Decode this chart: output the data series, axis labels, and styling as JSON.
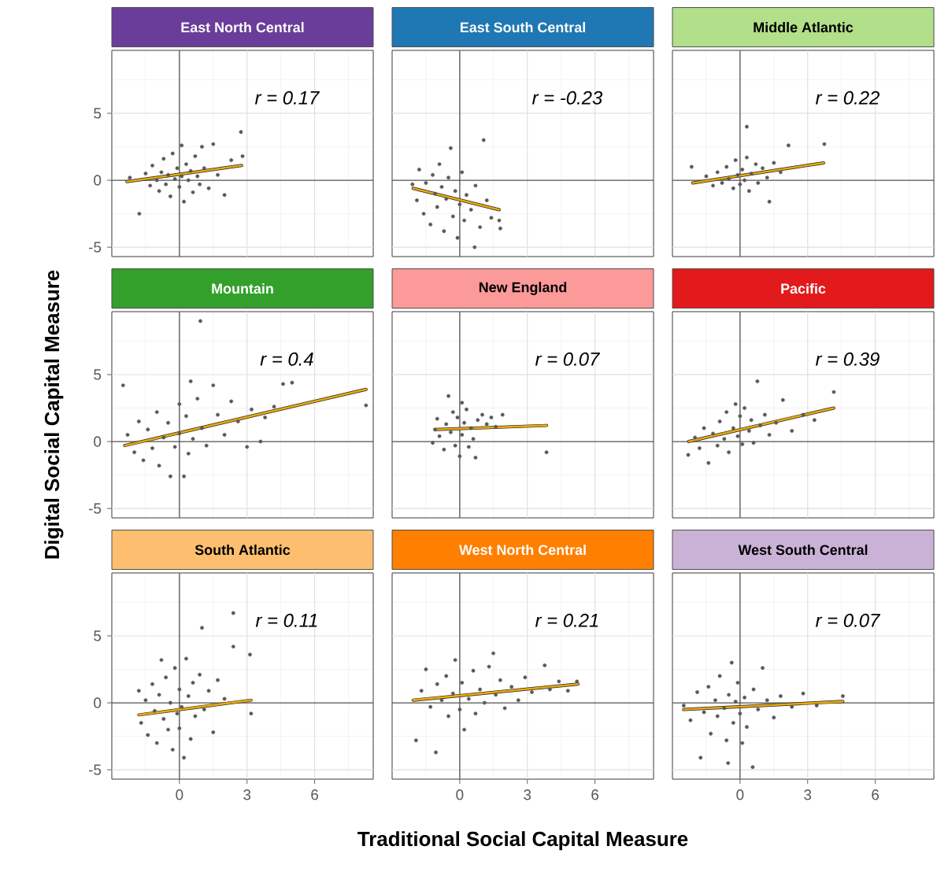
{
  "chart_data": [
    {
      "type": "scatter",
      "title": "East North Central",
      "xlim": [
        -3,
        8.6
      ],
      "ylim": [
        -5.7,
        9.7
      ],
      "xticks": [
        0,
        3,
        6
      ],
      "yticks": [
        -5,
        0,
        5
      ],
      "grid": true,
      "tick_labels": "y",
      "annotations": [
        "r = 0.17"
      ],
      "ref_lines": [
        {
          "axis": "x",
          "value": 0
        },
        {
          "axis": "y",
          "value": 0
        }
      ],
      "series": [
        {
          "type": "scatter",
          "marker": "circle",
          "color": "#595959",
          "x": [
            -2.2,
            -1.78,
            -1.5,
            -1.3,
            -1.2,
            -1.0,
            -0.9,
            -0.8,
            -0.7,
            -0.6,
            -0.5,
            -0.4,
            -0.3,
            -0.2,
            -0.1,
            0,
            0.1,
            0.1,
            0.2,
            0.3,
            0.4,
            0.5,
            0.6,
            0.7,
            0.8,
            0.9,
            1.0,
            1.1,
            1.3,
            1.5,
            1.7,
            2.0,
            2.3,
            2.73,
            2.8
          ],
          "values": [
            0.2,
            -2.5,
            0.5,
            -0.4,
            1.1,
            0.0,
            -0.8,
            0.6,
            1.6,
            -0.3,
            0.4,
            -1.2,
            2.0,
            0.1,
            0.9,
            -0.5,
            0.3,
            2.6,
            -1.6,
            1.2,
            0.0,
            0.7,
            -0.9,
            1.8,
            0.3,
            -0.3,
            2.5,
            0.9,
            -0.6,
            2.7,
            0.4,
            -1.1,
            1.5,
            3.6,
            1.8
          ]
        },
        {
          "type": "line",
          "marker": "none",
          "color": "#e8a90e",
          "x": [
            -2.33,
            2.76
          ],
          "values": [
            -0.1,
            1.1
          ]
        }
      ]
    },
    {
      "type": "scatter",
      "title": "East South Central",
      "xlim": [
        -3,
        8.6
      ],
      "ylim": [
        -5.7,
        9.7
      ],
      "xticks": [
        0,
        3,
        6
      ],
      "yticks": [
        -5,
        0,
        5
      ],
      "grid": true,
      "tick_labels": false,
      "annotations": [
        "r = -0.23"
      ],
      "ref_lines": [
        {
          "axis": "x",
          "value": 0
        },
        {
          "axis": "y",
          "value": 0
        }
      ],
      "series": [
        {
          "type": "scatter",
          "marker": "circle",
          "color": "#595959",
          "x": [
            -2.1,
            -1.9,
            -1.8,
            -1.6,
            -1.5,
            -1.3,
            -1.2,
            -1.1,
            -1.0,
            -0.9,
            -0.8,
            -0.7,
            -0.6,
            -0.5,
            -0.4,
            -0.3,
            -0.2,
            -0.1,
            0,
            0.1,
            0.2,
            0.3,
            0.5,
            0.66,
            0.7,
            0.9,
            1.06,
            1.2,
            1.4,
            1.75,
            1.8
          ],
          "values": [
            -0.3,
            -1.5,
            0.8,
            -2.5,
            -0.2,
            -3.3,
            0.4,
            -1.0,
            -2.0,
            1.2,
            -0.5,
            -3.8,
            -1.4,
            0.2,
            2.4,
            -2.7,
            -0.8,
            -4.3,
            -1.8,
            0.6,
            -3.0,
            -1.1,
            -2.2,
            -5.0,
            -0.4,
            -3.5,
            3.0,
            -1.5,
            -2.8,
            -3.0,
            -3.6
          ]
        },
        {
          "type": "line",
          "marker": "none",
          "color": "#e8a90e",
          "x": [
            -2.07,
            1.75
          ],
          "values": [
            -0.6,
            -2.2
          ]
        }
      ]
    },
    {
      "type": "scatter",
      "title": "Middle Atlantic",
      "xlim": [
        -3,
        8.6
      ],
      "ylim": [
        -5.7,
        9.7
      ],
      "xticks": [
        0,
        3,
        6
      ],
      "yticks": [
        -5,
        0,
        5
      ],
      "grid": true,
      "tick_labels": false,
      "annotations": [
        "r = 0.22"
      ],
      "ref_lines": [
        {
          "axis": "x",
          "value": 0
        },
        {
          "axis": "y",
          "value": 0
        }
      ],
      "series": [
        {
          "type": "scatter",
          "marker": "circle",
          "color": "#595959",
          "x": [
            -2.15,
            -1.5,
            -1.2,
            -1.0,
            -0.8,
            -0.6,
            -0.5,
            -0.3,
            -0.2,
            -0.1,
            0,
            0.1,
            0.2,
            0.3,
            0.3,
            0.4,
            0.5,
            0.7,
            0.8,
            1.0,
            1.2,
            1.3,
            1.5,
            1.8,
            2.15,
            3.74
          ],
          "values": [
            1.0,
            0.3,
            -0.4,
            0.6,
            -0.2,
            1.0,
            0.1,
            -0.6,
            1.5,
            0.4,
            -0.3,
            0.8,
            0.0,
            4.0,
            1.7,
            -0.8,
            0.5,
            1.2,
            -0.2,
            0.9,
            0.2,
            -1.6,
            1.3,
            0.6,
            2.6,
            2.7
          ]
        },
        {
          "type": "line",
          "marker": "none",
          "color": "#e8a90e",
          "x": [
            -2.1,
            3.71
          ],
          "values": [
            -0.2,
            1.3
          ]
        }
      ]
    },
    {
      "type": "scatter",
      "title": "Mountain",
      "ylabel": "Digital Social Capital Measure",
      "xlim": [
        -3,
        8.6
      ],
      "ylim": [
        -5.7,
        9.7
      ],
      "xticks": [
        0,
        3,
        6
      ],
      "yticks": [
        -5,
        0,
        5
      ],
      "grid": true,
      "tick_labels": "y",
      "annotations": [
        "r = 0.4"
      ],
      "ref_lines": [
        {
          "axis": "x",
          "value": 0
        },
        {
          "axis": "y",
          "value": 0
        }
      ],
      "series": [
        {
          "type": "scatter",
          "marker": "circle",
          "color": "#595959",
          "x": [
            -2.5,
            -2.3,
            -2.0,
            -1.8,
            -1.6,
            -1.4,
            -1.2,
            -1.0,
            -0.9,
            -0.7,
            -0.5,
            -0.4,
            -0.2,
            0,
            0,
            0.2,
            0.3,
            0.4,
            0.5,
            0.6,
            0.8,
            0.93,
            1.0,
            1.2,
            1.5,
            1.7,
            2.0,
            2.3,
            2.6,
            3.0,
            3.2,
            3.8,
            4.2,
            4.6,
            5.0,
            3.6,
            8.28
          ],
          "values": [
            4.2,
            0.5,
            -0.8,
            1.5,
            -1.4,
            0.9,
            -0.5,
            2.2,
            -1.8,
            0.3,
            1.4,
            -2.6,
            -0.4,
            2.8,
            0.6,
            -2.6,
            1.9,
            -0.9,
            4.5,
            0.2,
            3.2,
            9.0,
            1.0,
            -0.3,
            4.2,
            2.0,
            0.5,
            3.0,
            1.5,
            -0.4,
            2.4,
            1.8,
            2.6,
            4.3,
            4.4,
            0.0,
            2.7
          ]
        },
        {
          "type": "line",
          "marker": "none",
          "color": "#e8a90e",
          "x": [
            -2.43,
            8.28
          ],
          "values": [
            -0.3,
            3.9
          ]
        }
      ]
    },
    {
      "type": "scatter",
      "title": "New England",
      "xlim": [
        -3,
        8.6
      ],
      "ylim": [
        -5.7,
        9.7
      ],
      "xticks": [
        0,
        3,
        6
      ],
      "yticks": [
        -5,
        0,
        5
      ],
      "grid": true,
      "tick_labels": false,
      "annotations": [
        "r = 0.07"
      ],
      "ref_lines": [
        {
          "axis": "x",
          "value": 0
        },
        {
          "axis": "y",
          "value": 0
        }
      ],
      "series": [
        {
          "type": "scatter",
          "marker": "circle",
          "color": "#595959",
          "x": [
            -1.2,
            -1.1,
            -1.0,
            -0.9,
            -0.7,
            -0.6,
            -0.5,
            -0.4,
            -0.3,
            -0.2,
            -0.1,
            0,
            0.1,
            0.1,
            0.2,
            0.3,
            0.4,
            0.5,
            0.6,
            0.7,
            0.8,
            1.0,
            1.2,
            1.4,
            1.6,
            1.9,
            3.85
          ],
          "values": [
            -0.1,
            0.9,
            1.7,
            0.4,
            -0.6,
            1.3,
            3.4,
            0.7,
            2.2,
            -0.3,
            1.8,
            -1.1,
            2.9,
            0.5,
            1.4,
            2.4,
            -0.4,
            1.0,
            0.2,
            -1.2,
            1.6,
            2.0,
            1.3,
            1.8,
            1.1,
            2.0,
            -0.8
          ]
        },
        {
          "type": "line",
          "marker": "none",
          "color": "#e8a90e",
          "x": [
            -1.06,
            3.85
          ],
          "values": [
            0.9,
            1.2
          ]
        }
      ]
    },
    {
      "type": "scatter",
      "title": "Pacific",
      "xlim": [
        -3,
        8.6
      ],
      "ylim": [
        -5.7,
        9.7
      ],
      "xticks": [
        0,
        3,
        6
      ],
      "yticks": [
        -5,
        0,
        5
      ],
      "grid": true,
      "tick_labels": false,
      "annotations": [
        "r = 0.39"
      ],
      "ref_lines": [
        {
          "axis": "x",
          "value": 0
        },
        {
          "axis": "y",
          "value": 0
        }
      ],
      "series": [
        {
          "type": "scatter",
          "marker": "circle",
          "color": "#595959",
          "x": [
            -2.3,
            -2.0,
            -1.8,
            -1.6,
            -1.4,
            -1.2,
            -1.0,
            -0.9,
            -0.7,
            -0.6,
            -0.5,
            -0.3,
            -0.2,
            -0.1,
            0,
            0.1,
            0.2,
            0.4,
            0.5,
            0.6,
            0.77,
            0.9,
            1.1,
            1.3,
            1.6,
            1.9,
            2.3,
            2.8,
            3.3,
            4.16
          ],
          "values": [
            -1.0,
            0.3,
            -0.5,
            1.0,
            -1.6,
            0.6,
            -0.3,
            1.5,
            0.2,
            2.2,
            -0.8,
            1.0,
            2.8,
            0.4,
            1.9,
            -0.2,
            2.5,
            0.8,
            1.6,
            -0.1,
            4.5,
            1.2,
            2.0,
            0.5,
            1.4,
            3.1,
            0.8,
            2.0,
            1.6,
            3.7
          ]
        },
        {
          "type": "line",
          "marker": "none",
          "color": "#e8a90e",
          "x": [
            -2.28,
            4.16
          ],
          "values": [
            0,
            2.5
          ]
        }
      ]
    },
    {
      "type": "scatter",
      "title": "South Atlantic",
      "xlim": [
        -3,
        8.6
      ],
      "ylim": [
        -5.7,
        9.7
      ],
      "xticks": [
        0,
        3,
        6
      ],
      "yticks": [
        -5,
        0,
        5
      ],
      "grid": true,
      "annotations": [
        "r = 0.11"
      ],
      "ref_lines": [
        {
          "axis": "x",
          "value": 0
        },
        {
          "axis": "y",
          "value": 0
        }
      ],
      "series": [
        {
          "type": "scatter",
          "marker": "circle",
          "color": "#595959",
          "x": [
            -1.8,
            -1.7,
            -1.5,
            -1.4,
            -1.2,
            -1.1,
            -1.0,
            -0.9,
            -0.8,
            -0.7,
            -0.6,
            -0.5,
            -0.4,
            -0.3,
            -0.2,
            -0.1,
            0,
            0,
            0.1,
            0.2,
            0.3,
            0.4,
            0.5,
            0.6,
            0.7,
            0.9,
            1.0,
            1.1,
            1.3,
            1.5,
            1.7,
            2.0,
            2.39,
            2.39,
            3.13,
            3.18
          ],
          "values": [
            0.9,
            -1.5,
            0.2,
            -2.4,
            1.4,
            -0.6,
            -3.0,
            0.6,
            3.2,
            -1.2,
            1.9,
            -2.0,
            0.0,
            -3.5,
            2.6,
            -0.8,
            1.0,
            -1.9,
            -0.3,
            -4.1,
            3.3,
            0.5,
            -2.7,
            1.5,
            -1.0,
            2.1,
            5.6,
            -0.5,
            0.9,
            -2.2,
            1.7,
            0.3,
            6.7,
            4.2,
            3.6,
            -0.8
          ]
        },
        {
          "type": "line",
          "marker": "none",
          "color": "#e8a90e",
          "x": [
            -1.8,
            3.18
          ],
          "values": [
            -0.9,
            0.2
          ]
        }
      ]
    },
    {
      "type": "scatter",
      "title": "West North Central",
      "xlabel": "Traditional Social Capital Measure",
      "xlim": [
        -3,
        8.6
      ],
      "ylim": [
        -5.7,
        9.7
      ],
      "xticks": [
        0,
        3,
        6
      ],
      "yticks": [
        -5,
        0,
        5
      ],
      "grid": true,
      "tick_labels": "x",
      "annotations": [
        "r = 0.21"
      ],
      "ref_lines": [
        {
          "axis": "x",
          "value": 0
        },
        {
          "axis": "y",
          "value": 0
        }
      ],
      "series": [
        {
          "type": "scatter",
          "marker": "circle",
          "color": "#595959",
          "x": [
            -1.94,
            -1.7,
            -1.5,
            -1.3,
            -1.06,
            -1.0,
            -0.8,
            -0.6,
            -0.5,
            -0.3,
            -0.2,
            0,
            0.1,
            0.2,
            0.4,
            0.6,
            0.7,
            0.9,
            1.1,
            1.3,
            1.49,
            1.6,
            1.8,
            2.0,
            2.3,
            2.6,
            2.9,
            3.2,
            3.77,
            4.0,
            4.4,
            4.8,
            5.2
          ],
          "values": [
            -2.8,
            0.9,
            2.5,
            -0.3,
            -3.7,
            1.4,
            0.2,
            2.0,
            -1.0,
            0.7,
            3.2,
            -0.5,
            1.5,
            -2.0,
            0.3,
            2.4,
            -0.8,
            1.0,
            0.0,
            2.7,
            3.7,
            0.6,
            1.7,
            -0.4,
            1.2,
            0.2,
            1.9,
            0.8,
            2.8,
            1.0,
            1.6,
            0.9,
            1.6
          ]
        },
        {
          "type": "line",
          "marker": "none",
          "color": "#e8a90e",
          "x": [
            -2.07,
            5.25
          ],
          "values": [
            0.2,
            1.4
          ]
        }
      ]
    },
    {
      "type": "scatter",
      "title": "West South Central",
      "xlim": [
        -3,
        8.6
      ],
      "ylim": [
        -5.7,
        9.7
      ],
      "xticks": [
        0,
        3,
        6
      ],
      "yticks": [
        -5,
        0,
        5
      ],
      "grid": true,
      "tick_labels": "x",
      "annotations": [
        "r = 0.07"
      ],
      "ref_lines": [
        {
          "axis": "x",
          "value": 0
        },
        {
          "axis": "y",
          "value": 0
        }
      ],
      "series": [
        {
          "type": "scatter",
          "marker": "circle",
          "color": "#595959",
          "x": [
            -2.5,
            -2.2,
            -1.9,
            -1.75,
            -1.6,
            -1.4,
            -1.3,
            -1.1,
            -1.0,
            -0.9,
            -0.7,
            -0.6,
            -0.53,
            -0.5,
            -0.37,
            -0.3,
            -0.2,
            -0.1,
            0,
            0.1,
            0.2,
            0.3,
            0.56,
            0.6,
            0.8,
            1.0,
            1.2,
            1.5,
            1.8,
            2.3,
            2.8,
            3.4,
            4.56
          ],
          "values": [
            -0.2,
            -1.3,
            0.8,
            -4.1,
            -0.7,
            1.2,
            -2.3,
            0.2,
            -1.0,
            2.0,
            -0.4,
            -2.8,
            -4.5,
            0.6,
            3.0,
            -1.5,
            0.1,
            1.5,
            -0.8,
            -3.0,
            0.4,
            -1.8,
            -4.8,
            1.0,
            -0.5,
            2.6,
            0.2,
            -1.1,
            0.5,
            -0.3,
            0.7,
            -0.2,
            0.5
          ]
        },
        {
          "type": "line",
          "marker": "none",
          "color": "#e8a90e",
          "x": [
            -2.5,
            4.56
          ],
          "values": [
            -0.5,
            0.1
          ]
        }
      ]
    }
  ]
}
